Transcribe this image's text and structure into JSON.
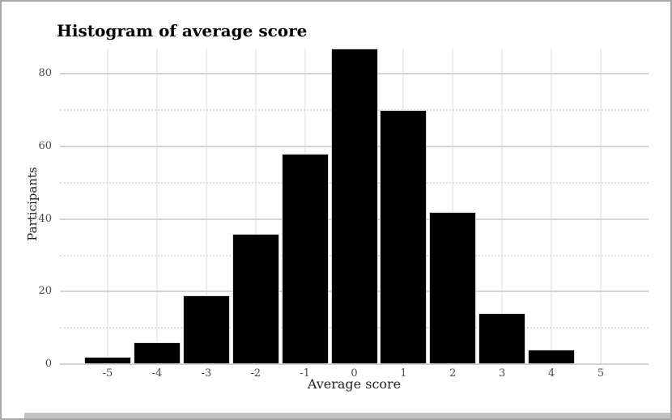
{
  "chart_data": {
    "type": "bar",
    "subtype": "histogram",
    "title": "Histogram of average score",
    "xlabel": "Average score",
    "ylabel": "Participants",
    "categories": [
      -5,
      -4,
      -3,
      -2,
      -1,
      0,
      1,
      2,
      3,
      4
    ],
    "values": [
      2,
      6,
      19,
      36,
      58,
      87,
      70,
      42,
      14,
      4
    ],
    "bin_width": 1,
    "x_ticks": [
      -5,
      -4,
      -3,
      -2,
      -1,
      0,
      1,
      2,
      3,
      4,
      5
    ],
    "y_ticks": [
      0,
      20,
      40,
      60,
      80
    ],
    "y_minor_ticks": [
      10,
      30,
      50,
      70
    ],
    "xlim": [
      -6,
      6
    ],
    "ylim": [
      0,
      87
    ],
    "grid": "on",
    "legend": "none"
  },
  "colors": {
    "bar_fill": "#000000",
    "bar_stroke": "#d9d9d9",
    "grid_major": "#d4d4d4",
    "grid_minor": "#e0e0e0",
    "grid_vertical": "#eeeeee",
    "tick_text": "#4a4a4a",
    "axis_title_text": "#222222",
    "title_text": "#000000",
    "frame_border": "#a6a6a6",
    "scrollbar": "#c3c3c3",
    "background": "#ffffff"
  }
}
